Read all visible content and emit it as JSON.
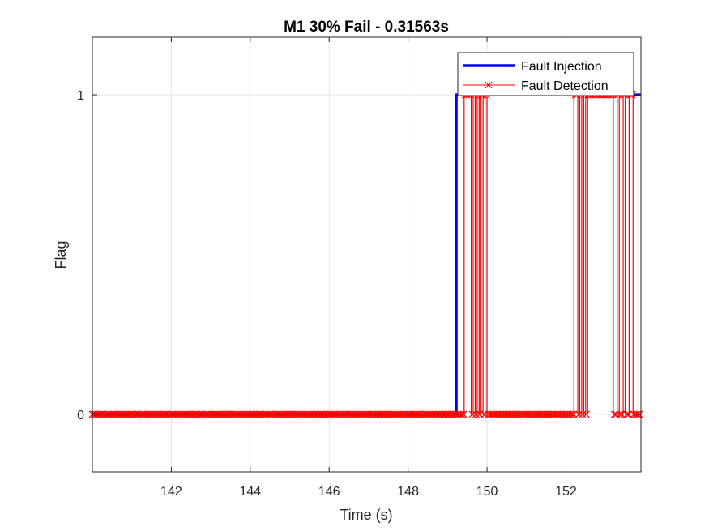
{
  "chart_data": {
    "type": "line",
    "title": "M1 30% Fail - 0.31563s",
    "xlabel": "Time (s)",
    "ylabel": "Flag",
    "xlim": [
      140.0,
      153.9
    ],
    "ylim": [
      -0.18,
      1.18
    ],
    "xticks": [
      142,
      144,
      146,
      148,
      150,
      152
    ],
    "yticks": [
      0,
      1
    ],
    "xtick_labels": [
      "142",
      "144",
      "146",
      "148",
      "150",
      "152"
    ],
    "ytick_labels": [
      "0",
      "1"
    ],
    "grid": true,
    "legend_position": "top-right",
    "series": [
      {
        "name": "Fault Injection",
        "color": "#0000ff",
        "marker": "none",
        "step": true,
        "x": [
          140.0,
          149.22,
          149.22,
          153.9
        ],
        "y": [
          0,
          0,
          1,
          1
        ]
      },
      {
        "name": "Fault Detection",
        "color": "#ff0000",
        "marker": "x",
        "step": true,
        "x": [
          140.0,
          149.35,
          149.42,
          149.6,
          149.65,
          149.7,
          149.75,
          149.8,
          149.85,
          149.9,
          149.95,
          150.0,
          152.2,
          152.3,
          152.35,
          152.4,
          152.45,
          152.5,
          152.55,
          152.6,
          153.2,
          153.3,
          153.35,
          153.45,
          153.5,
          153.6,
          153.7,
          153.9
        ],
        "y": [
          0,
          0,
          1,
          0,
          1,
          0,
          1,
          0,
          1,
          0,
          1,
          0,
          1,
          0,
          1,
          0,
          1,
          0,
          1,
          1,
          0,
          1,
          0,
          1,
          0,
          1,
          0,
          0
        ]
      }
    ]
  }
}
